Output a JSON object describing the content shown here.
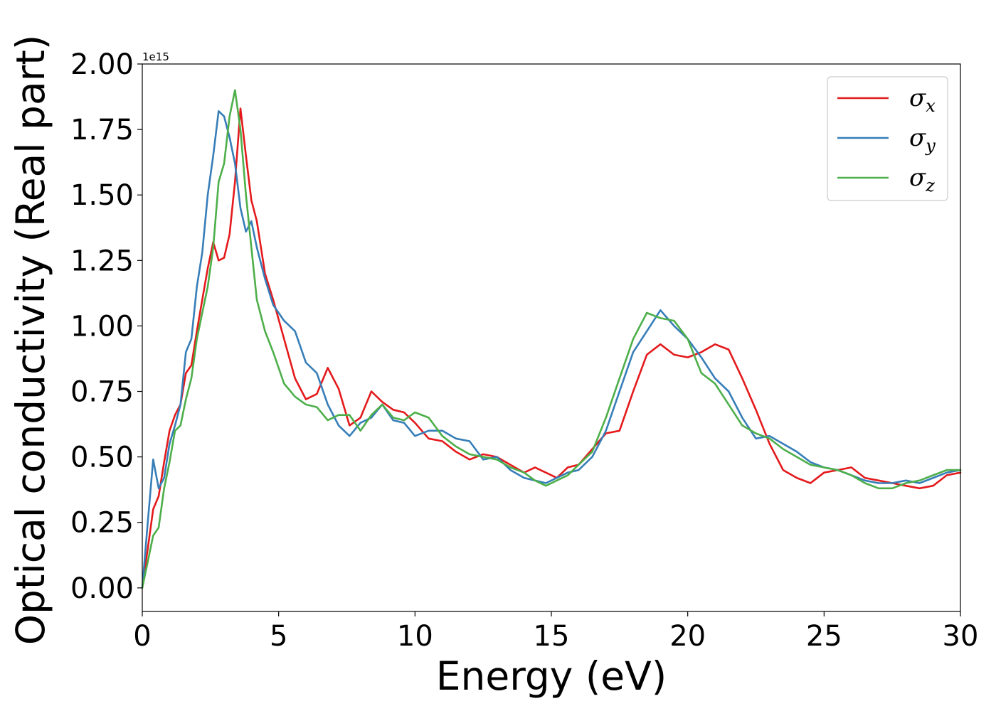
{
  "chart_data": {
    "type": "line",
    "title": "",
    "xlabel": "Energy (eV)",
    "ylabel": "Optical conductivity (Real part)",
    "y_offset_text": "1e15",
    "y_multiplier": 1000000000000000.0,
    "xlim": [
      0,
      30
    ],
    "ylim": [
      -0.09,
      2.0
    ],
    "x_ticks": [
      0,
      5,
      10,
      15,
      20,
      25,
      30
    ],
    "x_tick_labels": [
      "0",
      "5",
      "10",
      "15",
      "20",
      "25",
      "30"
    ],
    "y_ticks": [
      0.0,
      0.25,
      0.5,
      0.75,
      1.0,
      1.25,
      1.5,
      1.75,
      2.0
    ],
    "y_tick_labels": [
      "0.00",
      "0.25",
      "0.50",
      "0.75",
      "1.00",
      "1.25",
      "1.50",
      "1.75",
      "2.00"
    ],
    "grid": false,
    "legend_position": "top-right",
    "series": [
      {
        "name": "σx",
        "legend_symbol": "σ",
        "legend_subscript": "x",
        "color": "#e41a1c",
        "x": [
          0,
          0.2,
          0.4,
          0.6,
          0.8,
          1.0,
          1.2,
          1.4,
          1.6,
          1.8,
          2.0,
          2.2,
          2.4,
          2.6,
          2.8,
          3.0,
          3.2,
          3.4,
          3.6,
          3.8,
          4.0,
          4.2,
          4.5,
          4.8,
          5.2,
          5.6,
          6.0,
          6.4,
          6.8,
          7.2,
          7.6,
          8.0,
          8.4,
          8.8,
          9.2,
          9.6,
          10.0,
          10.5,
          11.0,
          11.5,
          12.0,
          12.5,
          13.0,
          13.5,
          14.0,
          14.4,
          14.8,
          15.2,
          15.6,
          16.0,
          16.5,
          17.0,
          17.5,
          18.0,
          18.5,
          19.0,
          19.5,
          20.0,
          20.5,
          21.0,
          21.5,
          22.0,
          22.5,
          23.0,
          23.5,
          24.0,
          24.5,
          25.0,
          25.5,
          26.0,
          26.5,
          27.0,
          27.5,
          28.0,
          28.5,
          29.0,
          29.5,
          30.0
        ],
        "y": [
          0.0,
          0.15,
          0.3,
          0.35,
          0.48,
          0.6,
          0.66,
          0.7,
          0.82,
          0.85,
          0.98,
          1.1,
          1.22,
          1.32,
          1.25,
          1.26,
          1.35,
          1.55,
          1.83,
          1.65,
          1.48,
          1.4,
          1.2,
          1.1,
          0.95,
          0.8,
          0.72,
          0.74,
          0.84,
          0.76,
          0.62,
          0.65,
          0.75,
          0.71,
          0.68,
          0.67,
          0.63,
          0.57,
          0.56,
          0.52,
          0.49,
          0.51,
          0.5,
          0.47,
          0.44,
          0.46,
          0.44,
          0.42,
          0.46,
          0.47,
          0.53,
          0.59,
          0.6,
          0.75,
          0.89,
          0.93,
          0.89,
          0.88,
          0.9,
          0.93,
          0.91,
          0.8,
          0.68,
          0.55,
          0.45,
          0.42,
          0.4,
          0.44,
          0.45,
          0.46,
          0.42,
          0.41,
          0.4,
          0.39,
          0.38,
          0.39,
          0.43,
          0.44
        ]
      },
      {
        "name": "σy",
        "legend_symbol": "σ",
        "legend_subscript": "y",
        "color": "#377eb8",
        "x": [
          0,
          0.2,
          0.4,
          0.6,
          0.8,
          1.0,
          1.2,
          1.4,
          1.6,
          1.8,
          2.0,
          2.2,
          2.4,
          2.6,
          2.8,
          3.0,
          3.2,
          3.4,
          3.6,
          3.8,
          4.0,
          4.2,
          4.5,
          4.8,
          5.2,
          5.6,
          6.0,
          6.4,
          6.8,
          7.2,
          7.6,
          8.0,
          8.4,
          8.8,
          9.2,
          9.6,
          10.0,
          10.5,
          11.0,
          11.5,
          12.0,
          12.5,
          13.0,
          13.5,
          14.0,
          14.4,
          14.8,
          15.2,
          15.6,
          16.0,
          16.5,
          17.0,
          17.5,
          18.0,
          18.5,
          19.0,
          19.5,
          20.0,
          20.5,
          21.0,
          21.5,
          22.0,
          22.5,
          23.0,
          23.5,
          24.0,
          24.5,
          25.0,
          25.5,
          26.0,
          26.5,
          27.0,
          27.5,
          28.0,
          28.5,
          29.0,
          29.5,
          30.0
        ],
        "y": [
          0.0,
          0.25,
          0.49,
          0.38,
          0.42,
          0.55,
          0.62,
          0.7,
          0.9,
          0.95,
          1.15,
          1.28,
          1.5,
          1.65,
          1.82,
          1.8,
          1.72,
          1.62,
          1.45,
          1.36,
          1.4,
          1.3,
          1.18,
          1.08,
          1.02,
          0.98,
          0.86,
          0.82,
          0.7,
          0.62,
          0.58,
          0.63,
          0.65,
          0.7,
          0.64,
          0.63,
          0.58,
          0.6,
          0.6,
          0.57,
          0.56,
          0.49,
          0.5,
          0.45,
          0.42,
          0.41,
          0.4,
          0.42,
          0.44,
          0.45,
          0.5,
          0.6,
          0.75,
          0.9,
          0.98,
          1.06,
          1.0,
          0.95,
          0.88,
          0.8,
          0.75,
          0.65,
          0.57,
          0.58,
          0.55,
          0.52,
          0.48,
          0.46,
          0.45,
          0.43,
          0.41,
          0.4,
          0.4,
          0.41,
          0.4,
          0.42,
          0.44,
          0.45
        ]
      },
      {
        "name": "σz",
        "legend_symbol": "σ",
        "legend_subscript": "z",
        "color": "#4daf4a",
        "x": [
          0,
          0.2,
          0.4,
          0.6,
          0.8,
          1.0,
          1.2,
          1.4,
          1.6,
          1.8,
          2.0,
          2.2,
          2.4,
          2.6,
          2.8,
          3.0,
          3.2,
          3.4,
          3.6,
          3.8,
          4.0,
          4.2,
          4.5,
          4.8,
          5.2,
          5.6,
          6.0,
          6.4,
          6.8,
          7.2,
          7.6,
          8.0,
          8.4,
          8.8,
          9.2,
          9.6,
          10.0,
          10.5,
          11.0,
          11.5,
          12.0,
          12.5,
          13.0,
          13.5,
          14.0,
          14.4,
          14.8,
          15.2,
          15.6,
          16.0,
          16.5,
          17.0,
          17.5,
          18.0,
          18.5,
          19.0,
          19.5,
          20.0,
          20.5,
          21.0,
          21.5,
          22.0,
          22.5,
          23.0,
          23.5,
          24.0,
          24.5,
          25.0,
          25.5,
          26.0,
          26.5,
          27.0,
          27.5,
          28.0,
          28.5,
          29.0,
          29.5,
          30.0
        ],
        "y": [
          0.0,
          0.1,
          0.2,
          0.23,
          0.38,
          0.48,
          0.6,
          0.62,
          0.72,
          0.8,
          0.95,
          1.05,
          1.15,
          1.3,
          1.55,
          1.62,
          1.8,
          1.9,
          1.75,
          1.5,
          1.3,
          1.1,
          0.98,
          0.9,
          0.78,
          0.73,
          0.7,
          0.69,
          0.64,
          0.66,
          0.66,
          0.6,
          0.66,
          0.7,
          0.65,
          0.64,
          0.67,
          0.65,
          0.58,
          0.54,
          0.51,
          0.5,
          0.49,
          0.46,
          0.44,
          0.41,
          0.39,
          0.41,
          0.43,
          0.47,
          0.52,
          0.65,
          0.8,
          0.95,
          1.05,
          1.03,
          1.02,
          0.95,
          0.82,
          0.78,
          0.7,
          0.62,
          0.59,
          0.57,
          0.53,
          0.5,
          0.47,
          0.46,
          0.45,
          0.43,
          0.4,
          0.38,
          0.38,
          0.4,
          0.41,
          0.43,
          0.45,
          0.45
        ]
      }
    ]
  }
}
